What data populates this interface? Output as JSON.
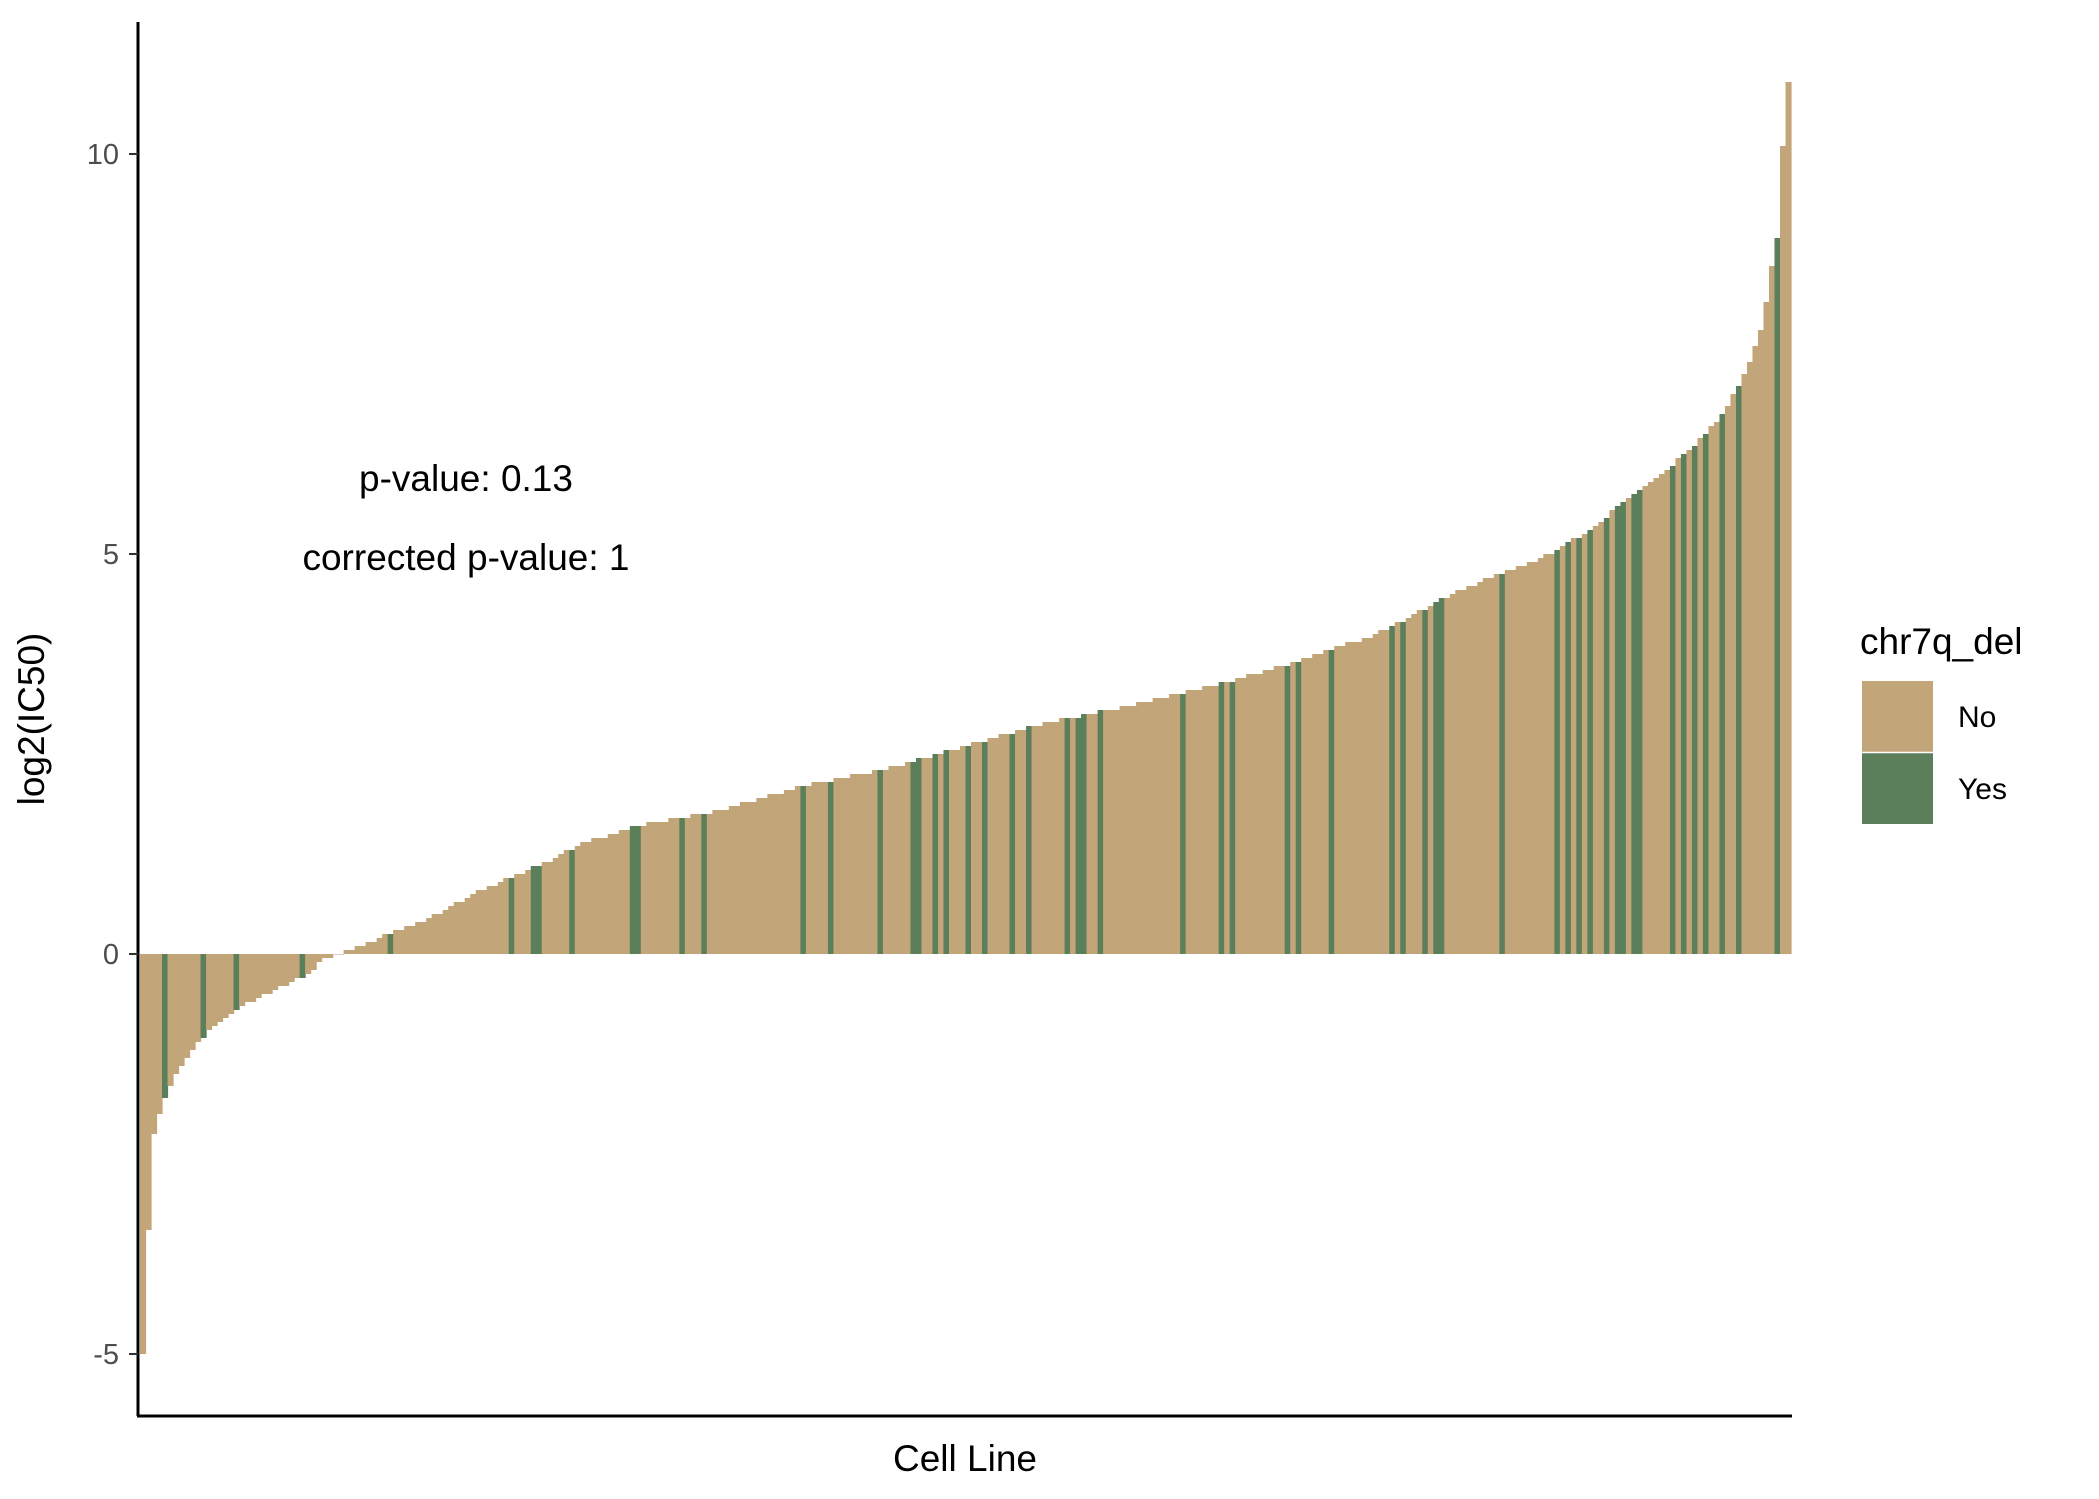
{
  "chart_data": {
    "type": "bar",
    "title": "",
    "xlabel": "Cell Line",
    "ylabel": "log2(IC50)",
    "ylim": [
      -5.6,
      11.6
    ],
    "yticks": [
      -5,
      0,
      5,
      10
    ],
    "ytick_labels": [
      "-5",
      "0",
      "5",
      "10"
    ],
    "x_ticks_shown": false,
    "grid": false,
    "legend": {
      "title": "chr7q_del",
      "position": "right",
      "entries": [
        {
          "label": "No",
          "color": "#c2a579"
        },
        {
          "label": "Yes",
          "color": "#5a7f5a"
        }
      ]
    },
    "annotations": [
      "p-value: 0.13",
      "corrected p-value: 1"
    ],
    "n_cell_lines": 300,
    "sorted": "ascending",
    "series": [
      {
        "group": "No",
        "value_profile": [
          {
            "rank": 0.0,
            "log2_ic50": -5.0
          },
          {
            "rank": 0.002,
            "log2_ic50": -4.3
          },
          {
            "rank": 0.005,
            "log2_ic50": -2.4
          },
          {
            "rank": 0.01,
            "log2_ic50": -2.0
          },
          {
            "rank": 0.015,
            "log2_ic50": -1.7
          },
          {
            "rank": 0.02,
            "log2_ic50": -1.5
          },
          {
            "rank": 0.03,
            "log2_ic50": -1.2
          },
          {
            "rank": 0.04,
            "log2_ic50": -0.95
          },
          {
            "rank": 0.06,
            "log2_ic50": -0.65
          },
          {
            "rank": 0.08,
            "log2_ic50": -0.45
          },
          {
            "rank": 0.1,
            "log2_ic50": -0.25
          },
          {
            "rank": 0.11,
            "log2_ic50": -0.05
          },
          {
            "rank": 0.12,
            "log2_ic50": 0.0
          },
          {
            "rank": 0.15,
            "log2_ic50": 0.25
          },
          {
            "rank": 0.18,
            "log2_ic50": 0.5
          },
          {
            "rank": 0.2,
            "log2_ic50": 0.75
          },
          {
            "rank": 0.24,
            "log2_ic50": 1.1
          },
          {
            "rank": 0.27,
            "log2_ic50": 1.4
          },
          {
            "rank": 0.3,
            "log2_ic50": 1.6
          },
          {
            "rank": 0.34,
            "log2_ic50": 1.75
          },
          {
            "rank": 0.36,
            "log2_ic50": 1.85
          },
          {
            "rank": 0.4,
            "log2_ic50": 2.1
          },
          {
            "rank": 0.45,
            "log2_ic50": 2.3
          },
          {
            "rank": 0.5,
            "log2_ic50": 2.6
          },
          {
            "rank": 0.55,
            "log2_ic50": 2.9
          },
          {
            "rank": 0.6,
            "log2_ic50": 3.1
          },
          {
            "rank": 0.65,
            "log2_ic50": 3.35
          },
          {
            "rank": 0.7,
            "log2_ic50": 3.65
          },
          {
            "rank": 0.75,
            "log2_ic50": 4.0
          },
          {
            "rank": 0.8,
            "log2_ic50": 4.55
          },
          {
            "rank": 0.85,
            "log2_ic50": 4.95
          },
          {
            "rank": 0.88,
            "log2_ic50": 5.3
          },
          {
            "rank": 0.9,
            "log2_ic50": 5.65
          },
          {
            "rank": 0.92,
            "log2_ic50": 5.95
          },
          {
            "rank": 0.94,
            "log2_ic50": 6.3
          },
          {
            "rank": 0.96,
            "log2_ic50": 6.75
          },
          {
            "rank": 0.975,
            "log2_ic50": 7.3
          },
          {
            "rank": 0.985,
            "log2_ic50": 7.9
          },
          {
            "rank": 0.99,
            "log2_ic50": 8.6
          },
          {
            "rank": 0.995,
            "log2_ic50": 9.1
          },
          {
            "rank": 0.997,
            "log2_ic50": 10.3
          },
          {
            "rank": 1.0,
            "log2_ic50": 10.9
          }
        ]
      },
      {
        "group": "Yes",
        "rank_positions": [
          0.015,
          0.038,
          0.058,
          0.098,
          0.15,
          0.225,
          0.236,
          0.242,
          0.262,
          0.296,
          0.302,
          0.328,
          0.342,
          0.403,
          0.418,
          0.448,
          0.468,
          0.472,
          0.48,
          0.488,
          0.502,
          0.512,
          0.528,
          0.54,
          0.562,
          0.569,
          0.573,
          0.582,
          0.632,
          0.657,
          0.661,
          0.695,
          0.702,
          0.722,
          0.76,
          0.767,
          0.78,
          0.785,
          0.79,
          0.825,
          0.858,
          0.865,
          0.872,
          0.88,
          0.89,
          0.895,
          0.898,
          0.905,
          0.91,
          0.93,
          0.935,
          0.944,
          0.95,
          0.959,
          0.97,
          0.992
        ]
      }
    ]
  }
}
